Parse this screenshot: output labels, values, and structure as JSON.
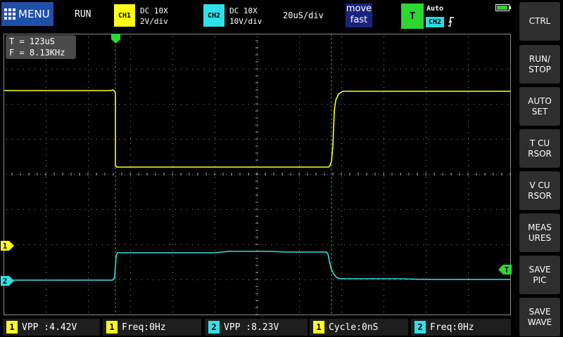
{
  "topbar": {
    "menu_label": "MENU",
    "run_state": "RUN",
    "ch1": {
      "label": "CH1",
      "coupling": "DC 10X",
      "scale": "2V/div",
      "color": "#ffff1a"
    },
    "ch2": {
      "label": "CH2",
      "coupling": "DC 10X",
      "scale": "10V/div",
      "color": "#30e0e8"
    },
    "timebase": "20uS/div",
    "move_line1": "move",
    "move_line2": "fast",
    "trigger": {
      "label": "T",
      "mode": "Auto",
      "source": "CH2",
      "edge_icon": "rising-edge-icon",
      "color": "#2bd832"
    },
    "battery_icon": "battery-icon"
  },
  "screen": {
    "cursor_readout": {
      "t": "T = 123uS",
      "f": "F = 8.13KHz"
    },
    "markers": {
      "ch1": "1",
      "ch2": "2",
      "trigger_level": "T"
    },
    "trigger_position_icon": "trigger-position-icon",
    "trace_colors": {
      "ch1": "#ffff1a",
      "ch2": "#30e0e8",
      "cursor": "#22bb22"
    }
  },
  "measurements": [
    {
      "channel": "1",
      "text": "VPP :4.42V"
    },
    {
      "channel": "1",
      "text": "Freq:0Hz"
    },
    {
      "channel": "2",
      "text": "VPP :8.23V"
    },
    {
      "channel": "1",
      "text": "Cycle:0nS"
    },
    {
      "channel": "2",
      "text": "Freq:0Hz"
    }
  ],
  "sidebar": [
    {
      "label": "CTRL"
    },
    {
      "label": "RUN/\nSTOP"
    },
    {
      "label": "AUTO\nSET"
    },
    {
      "label": "T CU\nRSOR"
    },
    {
      "label": "V CU\nRSOR"
    },
    {
      "label": "MEAS\nURES"
    },
    {
      "label": "SAVE\nPIC"
    },
    {
      "label": "SAVE\nWAVE"
    }
  ]
}
